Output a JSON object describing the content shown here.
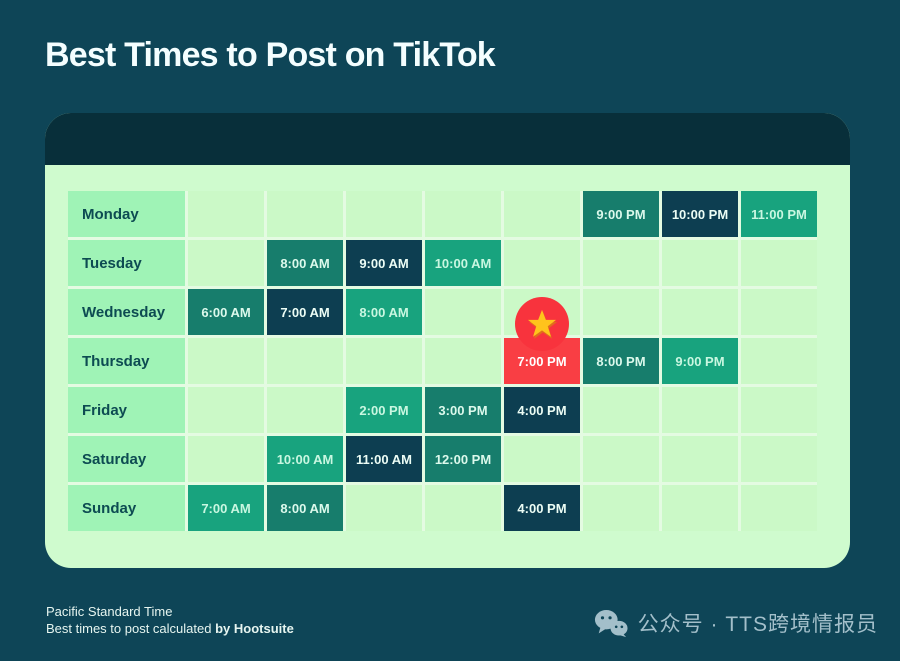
{
  "title": "Best Times to Post on TikTok",
  "chart_data": {
    "type": "heatmap",
    "title": "Best Times to Post on TikTok",
    "row_labels": [
      "Monday",
      "Tuesday",
      "Wednesday",
      "Thursday",
      "Friday",
      "Saturday",
      "Sunday"
    ],
    "num_time_columns": 8,
    "emphasis_styles": {
      "teal": "medium-highlight",
      "navy": "dark-highlight",
      "emerald": "bright-highlight",
      "red": "best-overall"
    },
    "days": [
      {
        "label": "Monday",
        "slots": [
          {
            "col": 6,
            "time": "9:00 PM",
            "style": "teal"
          },
          {
            "col": 7,
            "time": "10:00 PM",
            "style": "navy"
          },
          {
            "col": 8,
            "time": "11:00 PM",
            "style": "emerald"
          }
        ]
      },
      {
        "label": "Tuesday",
        "slots": [
          {
            "col": 2,
            "time": "8:00 AM",
            "style": "teal"
          },
          {
            "col": 3,
            "time": "9:00 AM",
            "style": "navy"
          },
          {
            "col": 4,
            "time": "10:00 AM",
            "style": "emerald"
          }
        ]
      },
      {
        "label": "Wednesday",
        "slots": [
          {
            "col": 1,
            "time": "6:00 AM",
            "style": "teal"
          },
          {
            "col": 2,
            "time": "7:00 AM",
            "style": "navy"
          },
          {
            "col": 3,
            "time": "8:00 AM",
            "style": "emerald"
          }
        ]
      },
      {
        "label": "Thursday",
        "slots": [
          {
            "col": 5,
            "time": "7:00 PM",
            "style": "red",
            "star": true
          },
          {
            "col": 6,
            "time": "8:00 PM",
            "style": "teal"
          },
          {
            "col": 7,
            "time": "9:00 PM",
            "style": "emerald"
          }
        ]
      },
      {
        "label": "Friday",
        "slots": [
          {
            "col": 3,
            "time": "2:00 PM",
            "style": "emerald"
          },
          {
            "col": 4,
            "time": "3:00 PM",
            "style": "teal"
          },
          {
            "col": 5,
            "time": "4:00 PM",
            "style": "navy"
          }
        ]
      },
      {
        "label": "Saturday",
        "slots": [
          {
            "col": 2,
            "time": "10:00 AM",
            "style": "emerald"
          },
          {
            "col": 3,
            "time": "11:00 AM",
            "style": "navy"
          },
          {
            "col": 4,
            "time": "12:00 PM",
            "style": "teal"
          }
        ]
      },
      {
        "label": "Sunday",
        "slots": [
          {
            "col": 1,
            "time": "7:00 AM",
            "style": "emerald"
          },
          {
            "col": 2,
            "time": "8:00 AM",
            "style": "teal"
          },
          {
            "col": 5,
            "time": "4:00 PM",
            "style": "navy"
          }
        ]
      }
    ],
    "best_overall": {
      "day": "Thursday",
      "time": "7:00 PM"
    }
  },
  "footer": {
    "line1": "Pacific Standard Time",
    "line2_prefix": "Best times to post calculated ",
    "line2_bold": "by Hootsuite"
  },
  "watermark": {
    "icon": "wechat-icon",
    "text": "公众号 · TTS跨境情报员"
  },
  "colors": {
    "page_bg": "#0e4557",
    "card_bg": "#cffbce",
    "card_header": "#082f3a",
    "grid_gap": "#e4fbe2",
    "empty_cell": "#cbf9c7",
    "day_cell_bg": "#9ff3b6",
    "day_cell_text": "#0d4b52",
    "teal": {
      "bg": "#177d6c",
      "text": "#dcf9ec"
    },
    "navy": {
      "bg": "#0d3e51",
      "text": "#ecfdf5"
    },
    "emerald": {
      "bg": "#18a37e",
      "text": "#c9f7e1"
    },
    "red": {
      "bg": "#f93e44",
      "text": "#ffffff"
    },
    "star_badge_bg": "#f8333d",
    "star_gold": "#ffc31c",
    "title_text": "#f4feff",
    "footer_text": "#e6f5f0",
    "watermark_text": "#a3bfca"
  }
}
